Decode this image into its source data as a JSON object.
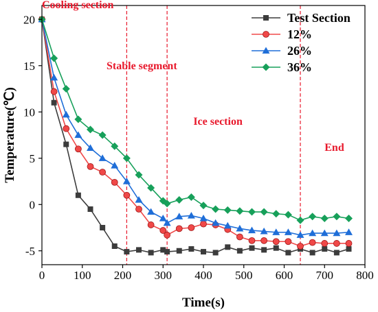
{
  "chart_data": {
    "type": "line",
    "xlabel": "Time(s)",
    "ylabel": "Temperature(℃)",
    "xlim": [
      0,
      800
    ],
    "ylim": [
      -6.5,
      21.5
    ],
    "xticks": [
      0,
      100,
      200,
      300,
      400,
      500,
      600,
      700,
      800
    ],
    "yticks": [
      -5,
      0,
      5,
      10,
      15,
      20
    ],
    "grid": false,
    "legend_position": "top-right",
    "x": [
      0,
      30,
      60,
      90,
      120,
      150,
      180,
      210,
      240,
      270,
      300,
      310,
      340,
      370,
      400,
      430,
      460,
      490,
      520,
      550,
      580,
      610,
      640,
      670,
      700,
      730,
      760
    ],
    "series": [
      {
        "name": "Test Section",
        "color": "#3c3c3c",
        "marker": "square",
        "values": [
          20,
          11,
          6.5,
          1.0,
          -0.5,
          -2.5,
          -4.5,
          -5.1,
          -4.9,
          -5.2,
          -4.9,
          -5.1,
          -5.0,
          -4.8,
          -5.1,
          -5.2,
          -4.6,
          -5.0,
          -4.7,
          -4.9,
          -4.7,
          -5.2,
          -4.8,
          -5.2,
          -4.8,
          -5.2,
          -4.8
        ]
      },
      {
        "name": "12%",
        "color": "#f04848",
        "marker": "circle",
        "values": [
          20,
          12.2,
          8.2,
          6.0,
          4.1,
          3.5,
          2.4,
          1.0,
          -0.5,
          -2.2,
          -2.8,
          -3.3,
          -2.6,
          -2.5,
          -2.1,
          -2.2,
          -2.7,
          -3.5,
          -3.9,
          -3.9,
          -4.0,
          -4.0,
          -4.5,
          -4.1,
          -4.2,
          -4.2,
          -4.2
        ]
      },
      {
        "name": "26%",
        "color": "#1f6ed8",
        "marker": "triangle",
        "values": [
          20,
          13.7,
          9.7,
          7.5,
          6.1,
          5.0,
          4.2,
          2.5,
          0.5,
          -0.8,
          -1.5,
          -2.0,
          -1.3,
          -1.2,
          -1.5,
          -2.0,
          -2.3,
          -2.6,
          -2.8,
          -2.9,
          -3.0,
          -3.0,
          -3.3,
          -3.1,
          -3.1,
          -3.1,
          -3.0
        ]
      },
      {
        "name": "36%",
        "color": "#17a05a",
        "marker": "diamond",
        "values": [
          20,
          15.8,
          12.5,
          9.2,
          8.1,
          7.5,
          6.3,
          5.0,
          3.2,
          1.8,
          0.4,
          0.1,
          0.5,
          0.8,
          -0.1,
          -0.5,
          -0.6,
          -0.7,
          -0.8,
          -0.8,
          -1.0,
          -1.1,
          -1.7,
          -1.3,
          -1.5,
          -1.3,
          -1.5
        ]
      }
    ],
    "vlines": [
      210,
      310,
      640
    ],
    "annotations": [
      {
        "text": "Cooling section",
        "x": 0,
        "y": 21.2
      },
      {
        "text": "Stable segment",
        "x": 160,
        "y": 14.6
      },
      {
        "text": "Ice section",
        "x": 375,
        "y": 8.6
      },
      {
        "text": "End",
        "x": 700,
        "y": 5.8
      }
    ]
  }
}
